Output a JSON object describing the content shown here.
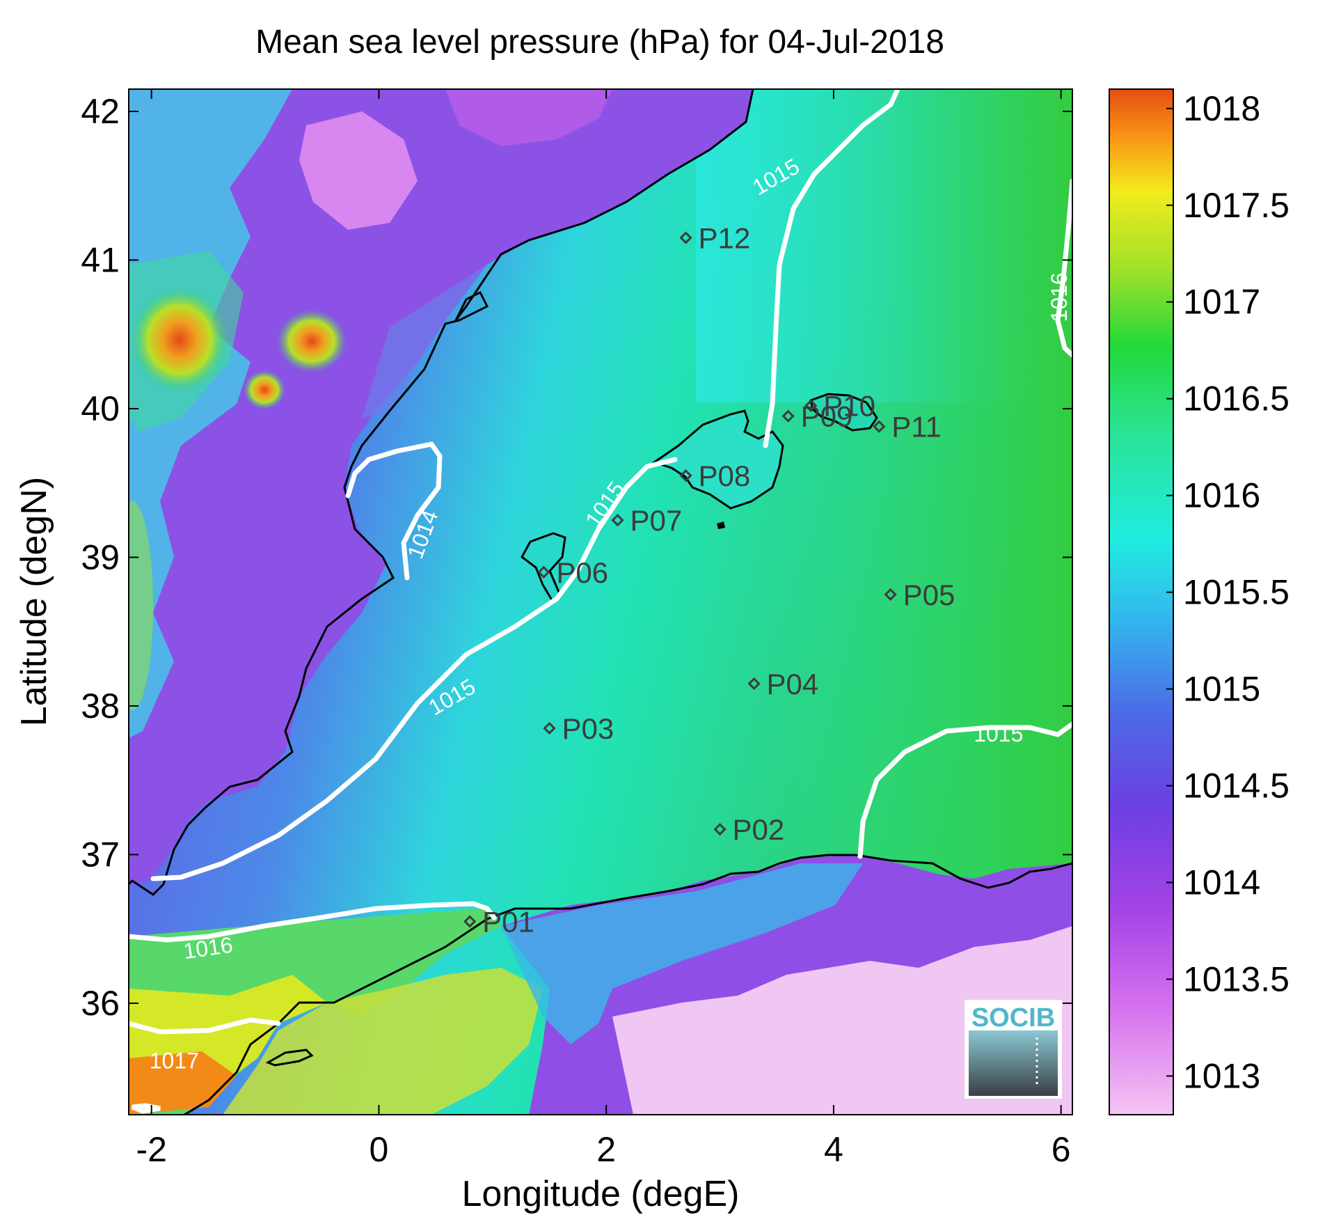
{
  "title": "Mean sea level pressure (hPa) for 04-Jul-2018",
  "x_axis": {
    "label": "Longitude (degE)",
    "min": -2.2,
    "max": 6.1,
    "ticks": [
      -2,
      0,
      2,
      4,
      6
    ],
    "tick_labels": [
      "-2",
      "0",
      "2",
      "4",
      "6"
    ]
  },
  "y_axis": {
    "label": "Latitude (degN)",
    "min": 35.25,
    "max": 42.15,
    "ticks": [
      36,
      37,
      38,
      39,
      40,
      41,
      42
    ],
    "tick_labels": [
      "36",
      "37",
      "38",
      "39",
      "40",
      "41",
      "42"
    ]
  },
  "colorbar": {
    "min": 1012.8,
    "max": 1018.1,
    "ticks": [
      1013,
      1013.5,
      1014,
      1014.5,
      1015,
      1015.5,
      1016,
      1016.5,
      1017,
      1017.5,
      1018
    ],
    "tick_labels": [
      "1013",
      "1013.5",
      "1014",
      "1014.5",
      "1015",
      "1015.5",
      "1016",
      "1016.5",
      "1017",
      "1017.5",
      "1018"
    ],
    "colors": [
      "#f4c4f4",
      "#c74ee8",
      "#7a3fe0",
      "#4f64e6",
      "#2fc8f0",
      "#1fe4c4",
      "#23d83a",
      "#9ae02a",
      "#f2ec1c",
      "#f99a16",
      "#e54e12"
    ]
  },
  "contour_labels": [
    {
      "text": "1014",
      "lon": 0.4,
      "lat": 39.15,
      "angle": -70
    },
    {
      "text": "1015",
      "lon": 0.65,
      "lat": 38.05,
      "angle": -30
    },
    {
      "text": "1015",
      "lon": 2.0,
      "lat": 39.35,
      "angle": -55
    },
    {
      "text": "1015",
      "lon": 3.5,
      "lat": 41.55,
      "angle": -30
    },
    {
      "text": "1015",
      "lon": 5.45,
      "lat": 37.8,
      "angle": 0
    },
    {
      "text": "1016",
      "lon": 6.0,
      "lat": 40.75,
      "angle": -90
    },
    {
      "text": "1016",
      "lon": -1.5,
      "lat": 36.36,
      "angle": -8
    },
    {
      "text": "1017",
      "lon": -1.8,
      "lat": 35.6,
      "angle": 0
    }
  ],
  "stations": [
    {
      "name": "P01",
      "lon": 0.8,
      "lat": 36.55
    },
    {
      "name": "P02",
      "lon": 3.0,
      "lat": 37.17
    },
    {
      "name": "P03",
      "lon": 1.5,
      "lat": 37.85
    },
    {
      "name": "P04",
      "lon": 3.3,
      "lat": 38.15
    },
    {
      "name": "P05",
      "lon": 4.5,
      "lat": 38.75
    },
    {
      "name": "P06",
      "lon": 1.45,
      "lat": 38.9
    },
    {
      "name": "P07",
      "lon": 2.1,
      "lat": 39.25
    },
    {
      "name": "P08",
      "lon": 2.7,
      "lat": 39.55
    },
    {
      "name": "P09",
      "lon": 3.6,
      "lat": 39.95
    },
    {
      "name": "P10",
      "lon": 3.8,
      "lat": 40.02
    },
    {
      "name": "P11",
      "lon": 4.4,
      "lat": 39.88
    },
    {
      "name": "P12",
      "lon": 2.7,
      "lat": 41.15
    }
  ],
  "logo": {
    "text": "SOCIB",
    "color": "#4fb7c8"
  }
}
